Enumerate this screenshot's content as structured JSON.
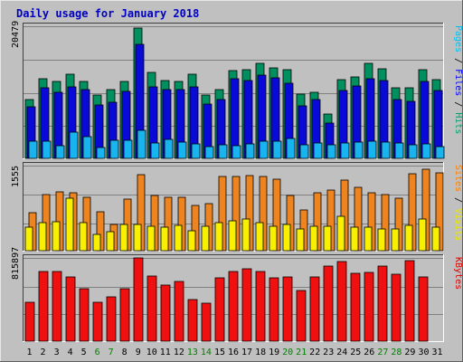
{
  "chart_data": {
    "type": "bar",
    "title": "Daily usage for January 2018",
    "days": [
      "1",
      "2",
      "3",
      "4",
      "5",
      "6",
      "7",
      "8",
      "9",
      "10",
      "11",
      "12",
      "13",
      "14",
      "15",
      "16",
      "17",
      "18",
      "19",
      "20",
      "21",
      "22",
      "23",
      "24",
      "25",
      "26",
      "27",
      "28",
      "29",
      "30",
      "31"
    ],
    "weekend_days": [
      6,
      7,
      13,
      14,
      20,
      21,
      27,
      28
    ],
    "panels": [
      {
        "id": "hits",
        "ymax_label": "20479",
        "ymax": 20479,
        "axis_label_parts": [
          {
            "text": "Pages",
            "color": "#00c0f0"
          },
          {
            "text": " / ",
            "color": "#000000"
          },
          {
            "text": "Files",
            "color": "#0000ff"
          },
          {
            "text": " / ",
            "color": "#000000"
          },
          {
            "text": "Hits",
            "color": "#00a070"
          }
        ],
        "series": [
          {
            "name": "Hits",
            "color": "#008f5f",
            "values": [
              9000,
              12200,
              11800,
              13000,
              11800,
              9800,
              10600,
              11900,
              20000,
              13300,
              12000,
              11900,
              13000,
              9800,
              10600,
              13500,
              13600,
              14600,
              14000,
              13600,
              9900,
              10200,
              6800,
              12100,
              12500,
              14600,
              13800,
              10800,
              10800,
              13700,
              12100
            ]
          },
          {
            "name": "Files",
            "color": "#0a0ad8",
            "values": [
              7900,
              10800,
              10200,
              11000,
              10600,
              8200,
              8700,
              10300,
              17600,
              11000,
              10600,
              10600,
              11000,
              8300,
              9000,
              12200,
              12000,
              12800,
              12400,
              11600,
              8100,
              9000,
              5500,
              10500,
              11100,
              12300,
              12000,
              9000,
              8800,
              11900,
              10500
            ]
          },
          {
            "name": "Pages",
            "color": "#18b4f0",
            "values": [
              2700,
              2700,
              2000,
              4100,
              3300,
              1700,
              2800,
              2800,
              4300,
              2300,
              2900,
              2500,
              2200,
              1800,
              2100,
              2000,
              2200,
              2600,
              2600,
              3000,
              2100,
              2300,
              2100,
              2400,
              2500,
              2600,
              2500,
              2400,
              2100,
              2200,
              1800
            ]
          }
        ]
      },
      {
        "id": "visits",
        "ymax_label": "1555",
        "ymax": 1555,
        "axis_label_parts": [
          {
            "text": "Sites",
            "color": "#ff8000"
          },
          {
            "text": " / ",
            "color": "#000000"
          },
          {
            "text": "Visits",
            "color": "#e8e800"
          }
        ],
        "series": [
          {
            "name": "Visits",
            "color": "#ee8420",
            "values": [
              690,
              1020,
              1060,
              1040,
              960,
              700,
              480,
              930,
              1370,
              1000,
              960,
              970,
              820,
              850,
              1340,
              1340,
              1360,
              1350,
              1300,
              1000,
              740,
              1050,
              1090,
              1270,
              1150,
              1050,
              1020,
              950,
              1390,
              1470,
              1410
            ]
          },
          {
            "name": "Sites",
            "color": "#f8f000",
            "values": [
              420,
              510,
              520,
              950,
              500,
              300,
              350,
              480,
              470,
              440,
              430,
              460,
              360,
              440,
              510,
              540,
              570,
              500,
              450,
              480,
              400,
              450,
              440,
              620,
              430,
              420,
              400,
              400,
              460,
              570,
              420
            ]
          }
        ]
      },
      {
        "id": "kbytes",
        "ymax_label": "815897",
        "ymax": 815897,
        "axis_label_parts": [
          {
            "text": "KBytes",
            "color": "#e00000"
          }
        ],
        "series": [
          {
            "name": "KBytes",
            "color": "#f01010",
            "values": [
              380000,
              675000,
              675000,
              620000,
              505000,
              375000,
              430000,
              510000,
              805000,
              630000,
              540000,
              580000,
              405000,
              365000,
              615000,
              675000,
              700000,
              675000,
              610000,
              620000,
              490000,
              620000,
              725000,
              770000,
              660000,
              670000,
              725000,
              650000,
              785000,
              620000,
              0
            ]
          }
        ]
      }
    ]
  }
}
